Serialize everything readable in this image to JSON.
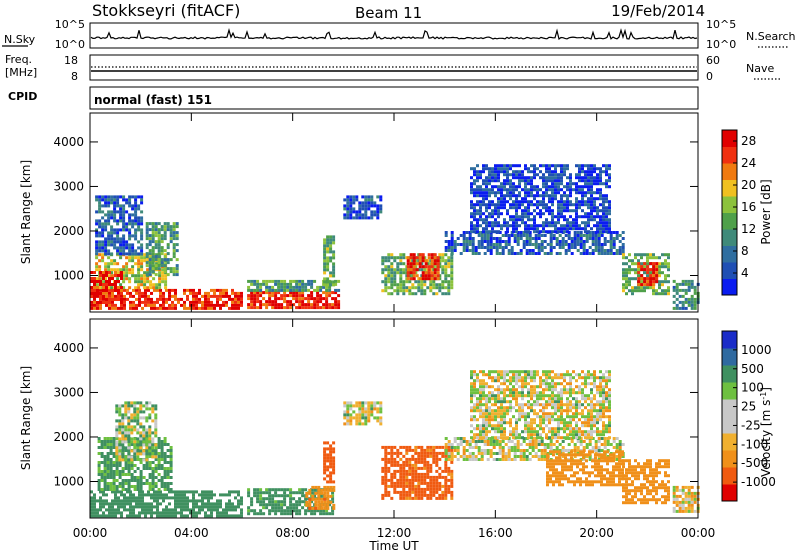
{
  "header": {
    "station": "Stokkseyri (fitACF)",
    "beam": "Beam 11",
    "date": "19/Feb/2014"
  },
  "status_panels": {
    "nsky_label": "N.Sky",
    "nsky_ticks": [
      "10^5",
      "10^0"
    ],
    "nsearch_label": "N.Search",
    "nsearch_ticks": [
      "10^5",
      "10^0"
    ],
    "freq_label_line1": "Freq.",
    "freq_label_line2": "[MHz]",
    "freq_ticks": [
      "18",
      "8"
    ],
    "nave_label": "Nave",
    "nave_ticks": [
      "60",
      "0"
    ],
    "cpid_label": "CPID",
    "cpid_value": "normal (fast) 151"
  },
  "colors": {
    "power": [
      "#0a1cf0",
      "#1f4fb4",
      "#2f6ea0",
      "#3f8a7a",
      "#4fa04a",
      "#8cc23c",
      "#f0c020",
      "#f07a10",
      "#f03010",
      "#e00000"
    ],
    "velocity_scale": [
      "#e00000",
      "#f05a10",
      "#f0901a",
      "#f0b030",
      "#c8c8c8",
      "#c8c8c8",
      "#6ec040",
      "#3f9060",
      "#2f6aa0",
      "#1a2cc8"
    ]
  },
  "chart_data": [
    {
      "type": "heatmap",
      "title": "",
      "xlabel": "",
      "ylabel": "Slant Range [km]",
      "colorbar_label": "Power [dB]",
      "colorbar_ticks": [
        "28",
        "24",
        "20",
        "16",
        "12",
        "8",
        "4"
      ],
      "y_ticks": [
        "4000",
        "3000",
        "2000",
        "1000"
      ],
      "x_ticks": [
        "00:00",
        "04:00",
        "08:00",
        "12:00",
        "16:00",
        "20:00",
        "00:00"
      ],
      "xlim_hours": [
        0,
        24
      ],
      "ylim_km": [
        180,
        4650
      ],
      "regions": [
        {
          "t0": 0.0,
          "t1": 6.0,
          "r0": 250,
          "r1": 700,
          "power": 26
        },
        {
          "t0": 0.2,
          "t1": 3.0,
          "r0": 700,
          "r1": 1500,
          "power": 18
        },
        {
          "t0": 0.0,
          "t1": 1.2,
          "r0": 400,
          "r1": 1100,
          "power": 28
        },
        {
          "t0": 2.2,
          "t1": 3.4,
          "r0": 1000,
          "r1": 2200,
          "power": 12
        },
        {
          "t0": 0.2,
          "t1": 2.0,
          "r0": 1500,
          "r1": 2800,
          "power": 6
        },
        {
          "t0": 6.2,
          "t1": 9.8,
          "r0": 250,
          "r1": 650,
          "power": 27
        },
        {
          "t0": 6.2,
          "t1": 9.8,
          "r0": 650,
          "r1": 900,
          "power": 12
        },
        {
          "t0": 9.2,
          "t1": 9.6,
          "r0": 800,
          "r1": 1900,
          "power": 14
        },
        {
          "t0": 10.0,
          "t1": 11.5,
          "r0": 2300,
          "r1": 2800,
          "power": 5
        },
        {
          "t0": 11.5,
          "t1": 14.3,
          "r0": 600,
          "r1": 1500,
          "power": 14
        },
        {
          "t0": 12.5,
          "t1": 13.8,
          "r0": 900,
          "r1": 1500,
          "power": 27
        },
        {
          "t0": 14.0,
          "t1": 21.0,
          "r0": 1500,
          "r1": 2000,
          "power": 6
        },
        {
          "t0": 15.0,
          "t1": 20.5,
          "r0": 2000,
          "r1": 3500,
          "power": 4
        },
        {
          "t0": 21.0,
          "t1": 22.8,
          "r0": 600,
          "r1": 1500,
          "power": 14
        },
        {
          "t0": 21.6,
          "t1": 22.4,
          "r0": 800,
          "r1": 1300,
          "power": 27
        },
        {
          "t0": 23.0,
          "t1": 24.0,
          "r0": 250,
          "r1": 900,
          "power": 10
        }
      ]
    },
    {
      "type": "heatmap",
      "title": "",
      "xlabel": "Time UT",
      "ylabel": "Slant Range [km]",
      "colorbar_label": "Velocity [m s^-1]",
      "colorbar_ticks": [
        "1000",
        "500",
        "100",
        "25",
        "-25",
        "-100",
        "-500",
        "-1000"
      ],
      "y_ticks": [
        "4000",
        "3000",
        "2000",
        "1000"
      ],
      "x_ticks": [
        "00:00",
        "04:00",
        "08:00",
        "12:00",
        "16:00",
        "20:00",
        "00:00"
      ],
      "xlim_hours": [
        0,
        24
      ],
      "ylim_km": [
        180,
        4650
      ],
      "regions": [
        {
          "t0": 0.0,
          "t1": 6.0,
          "r0": 250,
          "r1": 800,
          "velocity": 300
        },
        {
          "t0": 0.3,
          "t1": 3.2,
          "r0": 800,
          "r1": 2000,
          "velocity": 150
        },
        {
          "t0": 1.0,
          "t1": 2.6,
          "r0": 1500,
          "r1": 2800,
          "velocity": 40
        },
        {
          "t0": 6.2,
          "t1": 9.6,
          "r0": 250,
          "r1": 850,
          "velocity": 200
        },
        {
          "t0": 8.5,
          "t1": 9.6,
          "r0": 400,
          "r1": 900,
          "velocity": -400
        },
        {
          "t0": 9.2,
          "t1": 9.6,
          "r0": 1000,
          "r1": 1900,
          "velocity": -800
        },
        {
          "t0": 10.0,
          "t1": 11.5,
          "r0": 2300,
          "r1": 2800,
          "velocity": 0
        },
        {
          "t0": 11.5,
          "t1": 14.3,
          "r0": 600,
          "r1": 1800,
          "velocity": -600
        },
        {
          "t0": 14.0,
          "t1": 21.0,
          "r0": 1500,
          "r1": 2000,
          "velocity": 0
        },
        {
          "t0": 15.0,
          "t1": 20.5,
          "r0": 2000,
          "r1": 3500,
          "velocity": -10
        },
        {
          "t0": 18.0,
          "t1": 21.0,
          "r0": 900,
          "r1": 1700,
          "velocity": -300
        },
        {
          "t0": 21.0,
          "t1": 22.8,
          "r0": 500,
          "r1": 1500,
          "velocity": -350
        },
        {
          "t0": 23.0,
          "t1": 24.0,
          "r0": 300,
          "r1": 900,
          "velocity": -50
        }
      ]
    }
  ]
}
